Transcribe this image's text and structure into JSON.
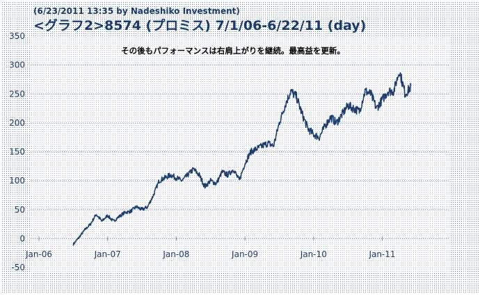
{
  "header": {
    "timestamp": "(6/23/2011 13:35 by Nadeshiko Investment)",
    "title": "<グラフ2>8574 (プロミス) 7/1/06-6/22/11 (day)"
  },
  "colors": {
    "line": "#1f3d70",
    "text": "#1a3a6b",
    "grid": "#6f8aa8",
    "border": "#2a4d7a",
    "dots": "#6d88a6"
  },
  "chart_data": {
    "type": "line",
    "annotation": "その後もパフォーマンスは右肩上がりを継続。最高益を更新。",
    "xlabel": "",
    "ylabel": "",
    "x_ticks": [
      "Jan-06",
      "Jan-07",
      "Jan-08",
      "Jan-09",
      "Jan-10",
      "Jan-11"
    ],
    "y_ticks": [
      350,
      300,
      250,
      200,
      150,
      100,
      50,
      0,
      -50
    ],
    "ylim": [
      -50,
      350
    ],
    "xlim": [
      "2006-01",
      "2011-12"
    ],
    "grid": true,
    "series": [
      {
        "x": [
          "2006-07",
          "2006-08",
          "2006-09",
          "2006-10",
          "2006-11",
          "2006-12",
          "2007-01",
          "2007-02",
          "2007-03",
          "2007-04",
          "2007-05",
          "2007-06",
          "2007-07",
          "2007-08",
          "2007-09",
          "2007-10",
          "2007-11",
          "2007-12",
          "2008-01",
          "2008-02",
          "2008-03",
          "2008-04",
          "2008-05",
          "2008-06",
          "2008-07",
          "2008-08",
          "2008-09",
          "2008-10",
          "2008-11",
          "2008-12",
          "2009-01",
          "2009-02",
          "2009-03",
          "2009-04",
          "2009-05",
          "2009-06",
          "2009-07",
          "2009-08",
          "2009-09",
          "2009-10",
          "2009-11",
          "2009-12",
          "2010-01",
          "2010-02",
          "2010-03",
          "2010-04",
          "2010-05",
          "2010-06",
          "2010-07",
          "2010-08",
          "2010-09",
          "2010-10",
          "2010-11",
          "2010-12",
          "2011-01",
          "2011-02",
          "2011-03",
          "2011-04",
          "2011-05",
          "2011-06"
        ],
        "values": [
          -10,
          2,
          15,
          25,
          42,
          30,
          40,
          30,
          38,
          45,
          47,
          55,
          50,
          55,
          75,
          100,
          105,
          110,
          105,
          100,
          110,
          120,
          110,
          90,
          100,
          95,
          115,
          110,
          120,
          100,
          130,
          150,
          155,
          160,
          165,
          160,
          200,
          230,
          255,
          245,
          215,
          190,
          180,
          175,
          195,
          210,
          200,
          215,
          230,
          225,
          220,
          255,
          250,
          225,
          240,
          255,
          255,
          290,
          250,
          262
        ]
      }
    ]
  }
}
